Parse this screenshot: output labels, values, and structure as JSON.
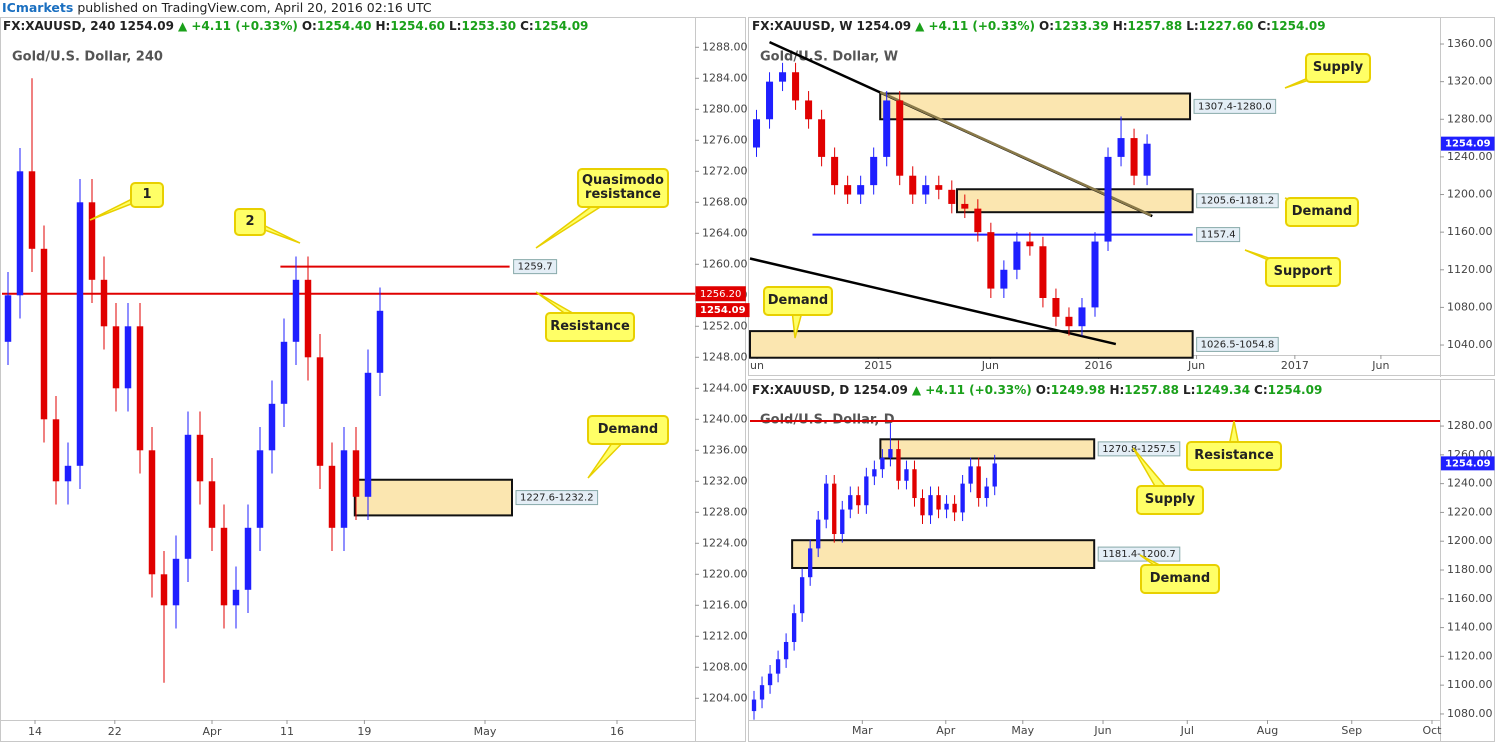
{
  "header": {
    "brand": "ICmarkets",
    "text": "published on TradingView.com, April 20, 2016 02:16 UTC"
  },
  "chart_data": [
    {
      "type": "candlestick",
      "watermark": "Gold/U.S. Dollar, 240",
      "info": {
        "symbol": "FX:XAUUSD, 240",
        "price": "1254.09",
        "change": "▲ +4.11 (+0.33%)",
        "ohlc": [
          {
            "k": "O:",
            "v": "1254.40"
          },
          {
            "k": "H:",
            "v": "1254.60"
          },
          {
            "k": "L:",
            "v": "1253.30"
          },
          {
            "k": "C:",
            "v": "1254.09"
          }
        ]
      },
      "bull_color": "#1f1fff",
      "bear_color": "#e00000",
      "open": [
        1250,
        1256,
        1272,
        1262,
        1240,
        1232,
        1234,
        1268,
        1258,
        1252,
        1244,
        1252,
        1236,
        1220,
        1216,
        1222,
        1238,
        1232,
        1226,
        1216,
        1218,
        1226,
        1236,
        1242,
        1250,
        1258,
        1248,
        1234,
        1226,
        1236,
        1230,
        1246
      ],
      "high": [
        1259,
        1275,
        1284,
        1265,
        1243,
        1237,
        1271,
        1271,
        1261,
        1255,
        1255,
        1255,
        1239,
        1223,
        1225,
        1241,
        1241,
        1235,
        1229,
        1221,
        1229,
        1239,
        1245,
        1253,
        1261,
        1261,
        1251,
        1237,
        1239,
        1239,
        1249,
        1257
      ],
      "low": [
        1247,
        1253,
        1259,
        1237,
        1229,
        1229,
        1231,
        1255,
        1249,
        1241,
        1241,
        1233,
        1217,
        1206,
        1213,
        1219,
        1229,
        1223,
        1213,
        1213,
        1215,
        1223,
        1233,
        1239,
        1247,
        1245,
        1231,
        1223,
        1223,
        1227,
        1227,
        1243
      ],
      "close": [
        1256,
        1272,
        1262,
        1240,
        1232,
        1234,
        1268,
        1258,
        1252,
        1244,
        1252,
        1236,
        1220,
        1216,
        1222,
        1238,
        1232,
        1226,
        1216,
        1218,
        1226,
        1236,
        1242,
        1250,
        1258,
        1248,
        1234,
        1226,
        1236,
        1230,
        1246,
        1254
      ],
      "xlim": [
        0,
        57.75
      ],
      "xticks": [
        {
          "value": 2.75,
          "label": "14"
        },
        {
          "value": 9.4,
          "label": "22"
        },
        {
          "value": 17.5,
          "label": "Apr"
        },
        {
          "value": 23.75,
          "label": "11"
        },
        {
          "value": 30.2,
          "label": "19"
        },
        {
          "value": 40.25,
          "label": "May"
        },
        {
          "value": 51.25,
          "label": "16"
        }
      ],
      "ylim": [
        1201.2,
        1289.2
      ],
      "yticks": [
        {
          "value": 1204,
          "label": "1204.00"
        },
        {
          "value": 1208,
          "label": "1208.00"
        },
        {
          "value": 1212,
          "label": "1212.00"
        },
        {
          "value": 1216,
          "label": "1216.00"
        },
        {
          "value": 1220,
          "label": "1220.00"
        },
        {
          "value": 1224,
          "label": "1224.00"
        },
        {
          "value": 1228,
          "label": "1228.00"
        },
        {
          "value": 1232,
          "label": "1232.00"
        },
        {
          "value": 1236,
          "label": "1236.00"
        },
        {
          "value": 1240,
          "label": "1240.00"
        },
        {
          "value": 1244,
          "label": "1244.00"
        },
        {
          "value": 1248,
          "label": "1248.00"
        },
        {
          "value": 1252,
          "label": "1252.00"
        },
        {
          "value": 1256,
          "label": "1256.00"
        },
        {
          "value": 1260,
          "label": "1260.00"
        },
        {
          "value": 1264,
          "label": "1264.00"
        },
        {
          "value": 1268,
          "label": "1268.00"
        },
        {
          "value": 1272,
          "label": "1272.00"
        },
        {
          "value": 1276,
          "label": "1276.00"
        },
        {
          "value": 1280,
          "label": "1280.00"
        },
        {
          "value": 1284,
          "label": "1284.00"
        },
        {
          "value": 1288,
          "label": "1288.00"
        }
      ],
      "last_price": 1254.09,
      "last_price_color": "#e00000",
      "hlines": [
        {
          "value": 1256.2,
          "label": "1256.20",
          "color": "#e00000",
          "x": [
            0,
            57.75
          ],
          "label_at": "axis"
        },
        {
          "value": 1259.7,
          "color": "#e00000",
          "x": [
            23.2,
            42.3
          ],
          "label_at": "right"
        }
      ],
      "zones": [
        {
          "low": 1227.6,
          "high": 1232.2,
          "label": "1227.6-1232.2",
          "x": [
            29.4,
            42.5
          ]
        }
      ],
      "trendlines": [],
      "callouts": [
        "1",
        "2",
        "Quasimodo resistance",
        "Resistance",
        "Demand"
      ]
    },
    {
      "type": "candlestick",
      "watermark": "Gold/U.S. Dollar, W",
      "info": {
        "symbol": "FX:XAUUSD, W",
        "price": "1254.09",
        "change": "▲ +4.11 (+0.33%)",
        "ohlc": [
          {
            "k": "O:",
            "v": "1233.39"
          },
          {
            "k": "H:",
            "v": "1257.88"
          },
          {
            "k": "L:",
            "v": "1227.60"
          },
          {
            "k": "C:",
            "v": "1254.09"
          }
        ]
      },
      "bull_color": "#1f1fff",
      "bear_color": "#e00000",
      "open": [
        1250,
        1280,
        1320,
        1330,
        1300,
        1280,
        1240,
        1210,
        1200,
        1210,
        1240,
        1300,
        1220,
        1200,
        1210,
        1205,
        1190,
        1185,
        1160,
        1100,
        1120,
        1150,
        1145,
        1090,
        1070,
        1060,
        1080,
        1150,
        1240,
        1260,
        1220
      ],
      "high": [
        1290,
        1330,
        1340,
        1340,
        1310,
        1290,
        1250,
        1220,
        1220,
        1250,
        1310,
        1310,
        1230,
        1220,
        1220,
        1215,
        1200,
        1195,
        1170,
        1130,
        1160,
        1160,
        1155,
        1100,
        1080,
        1090,
        1160,
        1250,
        1283,
        1270,
        1264
      ],
      "low": [
        1240,
        1270,
        1310,
        1290,
        1270,
        1230,
        1200,
        1190,
        1190,
        1200,
        1230,
        1210,
        1190,
        1190,
        1195,
        1180,
        1175,
        1150,
        1090,
        1090,
        1110,
        1135,
        1080,
        1060,
        1050,
        1050,
        1070,
        1140,
        1230,
        1210,
        1210
      ],
      "close": [
        1280,
        1320,
        1330,
        1300,
        1280,
        1240,
        1210,
        1200,
        1210,
        1240,
        1300,
        1220,
        1200,
        1210,
        1205,
        1190,
        1185,
        1160,
        1100,
        1120,
        1150,
        1145,
        1090,
        1070,
        1060,
        1080,
        1150,
        1240,
        1260,
        1220,
        1254
      ],
      "xlim": [
        0,
        53
      ],
      "xticks": [
        {
          "value": 0.54,
          "label": "un"
        },
        {
          "value": 9.85,
          "label": "2015"
        },
        {
          "value": 18.46,
          "label": "Jun"
        },
        {
          "value": 26.77,
          "label": "2016"
        },
        {
          "value": 34.3,
          "label": "Jun"
        },
        {
          "value": 41.85,
          "label": "2017"
        },
        {
          "value": 48.46,
          "label": "Jun"
        }
      ],
      "ylim": [
        1029.4,
        1366.4
      ],
      "yticks": [
        {
          "value": 1040,
          "label": "1040.00"
        },
        {
          "value": 1080,
          "label": "1080.00"
        },
        {
          "value": 1120,
          "label": "1120.00"
        },
        {
          "value": 1160,
          "label": "1160.00"
        },
        {
          "value": 1200,
          "label": "1200.00"
        },
        {
          "value": 1240,
          "label": "1240.00"
        },
        {
          "value": 1280,
          "label": "1280.00"
        },
        {
          "value": 1320,
          "label": "1320.00"
        },
        {
          "value": 1360,
          "label": "1360.00"
        }
      ],
      "last_price": 1254.09,
      "last_price_color": "#1f1fff",
      "hlines": [
        {
          "value": 1157.4,
          "color": "#1f1fff",
          "x": [
            4.8,
            34
          ],
          "label_at": "right"
        }
      ],
      "zones": [
        {
          "low": 1280.0,
          "high": 1307.4,
          "label": "1307.4-1280.0",
          "x": [
            10,
            33.8
          ]
        },
        {
          "low": 1181.2,
          "high": 1205.6,
          "label": "1205.6-1181.2",
          "x": [
            15.9,
            34
          ]
        },
        {
          "low": 1026.5,
          "high": 1054.8,
          "label": "1026.5-1054.8",
          "x": [
            0,
            34
          ]
        }
      ],
      "trendlines": [
        {
          "x": [
            1.5,
            30.9
          ],
          "y": [
            1362,
            1177
          ],
          "color": "#000000"
        },
        {
          "x": [
            0,
            28.1
          ],
          "y": [
            1132,
            1041
          ],
          "color": "#000000"
        },
        {
          "x": [
            10,
            30.8
          ],
          "y": [
            1309,
            1178
          ],
          "color": "#8a7a4a"
        }
      ],
      "callouts": [
        "Supply",
        "Demand",
        "Support",
        "Demand"
      ]
    },
    {
      "type": "candlestick",
      "watermark": "Gold/U.S. Dollar, D",
      "info": {
        "symbol": "FX:XAUUSD, D",
        "price": "1254.09",
        "change": "▲ +4.11 (+0.33%)",
        "ohlc": [
          {
            "k": "O:",
            "v": "1249.98"
          },
          {
            "k": "H:",
            "v": "1257.88"
          },
          {
            "k": "L:",
            "v": "1249.34"
          },
          {
            "k": "C:",
            "v": "1254.09"
          }
        ]
      },
      "bull_color": "#1f1fff",
      "bear_color": "#e00000",
      "open": [
        1082,
        1090,
        1100,
        1108,
        1118,
        1130,
        1150,
        1175,
        1195,
        1215,
        1240,
        1205,
        1222,
        1232,
        1225,
        1245,
        1250,
        1258,
        1264,
        1242,
        1250,
        1230,
        1218,
        1232,
        1222,
        1226,
        1220,
        1240,
        1252,
        1230,
        1238
      ],
      "high": [
        1096,
        1106,
        1114,
        1124,
        1136,
        1156,
        1181,
        1201,
        1221,
        1246,
        1246,
        1228,
        1238,
        1238,
        1251,
        1256,
        1264,
        1282,
        1270,
        1256,
        1256,
        1236,
        1238,
        1238,
        1232,
        1232,
        1246,
        1258,
        1258,
        1244,
        1260
      ],
      "low": [
        1076,
        1084,
        1094,
        1102,
        1112,
        1124,
        1144,
        1169,
        1189,
        1209,
        1199,
        1199,
        1216,
        1219,
        1219,
        1239,
        1244,
        1252,
        1236,
        1236,
        1224,
        1212,
        1212,
        1216,
        1216,
        1214,
        1214,
        1234,
        1224,
        1224,
        1232
      ],
      "close": [
        1090,
        1100,
        1108,
        1118,
        1130,
        1150,
        1175,
        1195,
        1215,
        1240,
        1205,
        1222,
        1232,
        1225,
        1245,
        1250,
        1258,
        1264,
        1242,
        1250,
        1230,
        1218,
        1232,
        1222,
        1226,
        1220,
        1240,
        1252,
        1230,
        1238,
        1254
      ],
      "xlim": [
        0,
        86
      ],
      "xticks": [
        {
          "value": 14,
          "label": "Mar"
        },
        {
          "value": 24.4,
          "label": "Apr"
        },
        {
          "value": 34,
          "label": "May"
        },
        {
          "value": 44,
          "label": "Jun"
        },
        {
          "value": 54.5,
          "label": "Jul"
        },
        {
          "value": 64.5,
          "label": "Aug"
        },
        {
          "value": 75,
          "label": "Sep"
        },
        {
          "value": 85,
          "label": "Oct"
        }
      ],
      "ylim": [
        1075.8,
        1298.1
      ],
      "yticks": [
        {
          "value": 1080,
          "label": "1080.00"
        },
        {
          "value": 1100,
          "label": "1100.00"
        },
        {
          "value": 1120,
          "label": "1120.00"
        },
        {
          "value": 1140,
          "label": "1140.00"
        },
        {
          "value": 1160,
          "label": "1160.00"
        },
        {
          "value": 1180,
          "label": "1180.00"
        },
        {
          "value": 1200,
          "label": "1200.00"
        },
        {
          "value": 1220,
          "label": "1220.00"
        },
        {
          "value": 1240,
          "label": "1240.00"
        },
        {
          "value": 1260,
          "label": "1260.00"
        },
        {
          "value": 1280,
          "label": "1280.00"
        }
      ],
      "last_price": 1254.09,
      "last_price_color": "#1f1fff",
      "hlines": [
        {
          "value": 1283.5,
          "color": "#e00000",
          "x": [
            0,
            86
          ],
          "label_at": "none"
        }
      ],
      "zones": [
        {
          "low": 1257.5,
          "high": 1270.8,
          "label": "1270.8-1257.5",
          "x": [
            16.25,
            42.9
          ]
        },
        {
          "low": 1181.4,
          "high": 1200.7,
          "label": "1181.4-1200.7",
          "x": [
            5.25,
            42.9
          ]
        }
      ],
      "trendlines": [],
      "callouts": [
        "Resistance",
        "Supply",
        "Demand"
      ]
    }
  ]
}
